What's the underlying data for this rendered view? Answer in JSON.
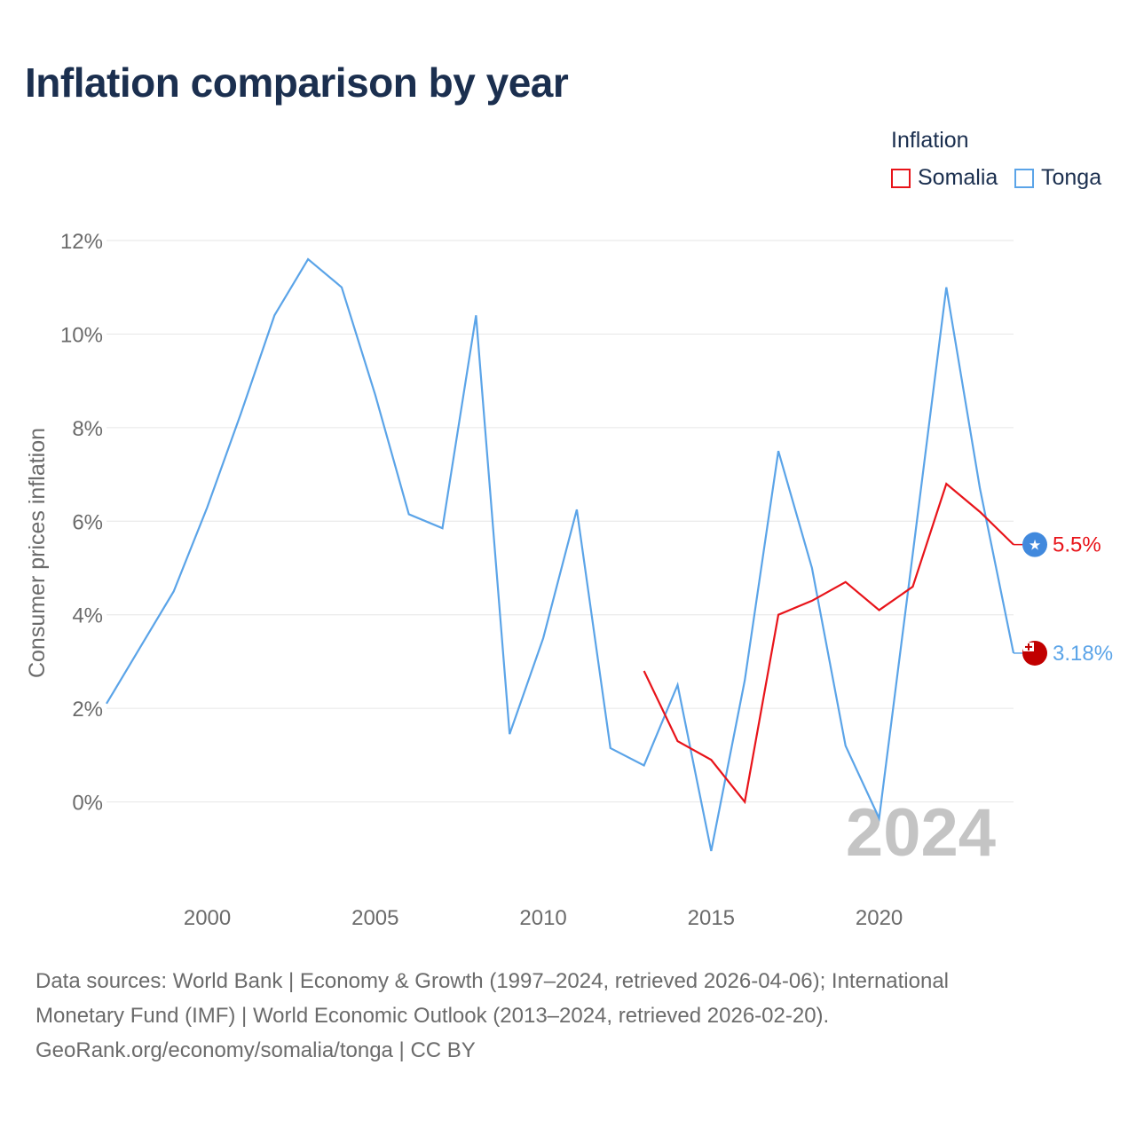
{
  "title": "Inflation comparison by year",
  "legend": {
    "title": "Inflation",
    "items": [
      {
        "label": "Somalia",
        "color": "#e8141a"
      },
      {
        "label": "Tonga",
        "color": "#5ba4e8"
      }
    ]
  },
  "chart_data": {
    "type": "line",
    "title": "Inflation comparison by year",
    "xlabel": "",
    "ylabel": "Consumer prices inflation",
    "xlim": [
      1997,
      2024
    ],
    "ylim": [
      -2,
      12
    ],
    "yticks": [
      0,
      2,
      4,
      6,
      8,
      10,
      12
    ],
    "ytick_labels": [
      "0%",
      "2%",
      "4%",
      "6%",
      "8%",
      "10%",
      "12%"
    ],
    "xticks": [
      2000,
      2005,
      2010,
      2015,
      2020
    ],
    "xtick_labels": [
      "2000",
      "2005",
      "2010",
      "2015",
      "2020"
    ],
    "grid": true,
    "year_watermark": "2024",
    "series": [
      {
        "name": "Somalia",
        "color": "#e8141a",
        "end_label": "5.5%",
        "flag_icon": "somalia-flag-icon",
        "x": [
          2013,
          2014,
          2015,
          2016,
          2017,
          2018,
          2019,
          2020,
          2021,
          2022,
          2023,
          2024
        ],
        "y": [
          2.8,
          1.3,
          0.9,
          0.0,
          4.0,
          4.3,
          4.7,
          4.1,
          4.6,
          6.8,
          6.2,
          5.5
        ]
      },
      {
        "name": "Tonga",
        "color": "#5ba4e8",
        "end_label": "3.18%",
        "flag_icon": "tonga-flag-icon",
        "x": [
          1997,
          1998,
          1999,
          2000,
          2001,
          2002,
          2003,
          2004,
          2005,
          2006,
          2007,
          2008,
          2009,
          2010,
          2011,
          2012,
          2013,
          2014,
          2015,
          2016,
          2017,
          2018,
          2019,
          2020,
          2021,
          2022,
          2023,
          2024
        ],
        "y": [
          2.1,
          3.3,
          4.5,
          6.3,
          8.3,
          10.4,
          11.6,
          11.0,
          8.7,
          6.15,
          5.85,
          10.4,
          1.45,
          3.5,
          6.25,
          1.15,
          0.78,
          2.5,
          -1.05,
          2.6,
          7.5,
          5.0,
          1.2,
          -0.35,
          5.3,
          11.0,
          6.7,
          3.18
        ]
      }
    ]
  },
  "footer": {
    "line1": "Data sources: World Bank | Economy & Growth (1997–2024, retrieved 2026-04-06); International",
    "line2": "Monetary Fund (IMF) | World Economic Outlook (2013–2024, retrieved 2026-02-20).",
    "line3": "GeoRank.org/economy/somalia/tonga | CC BY"
  }
}
